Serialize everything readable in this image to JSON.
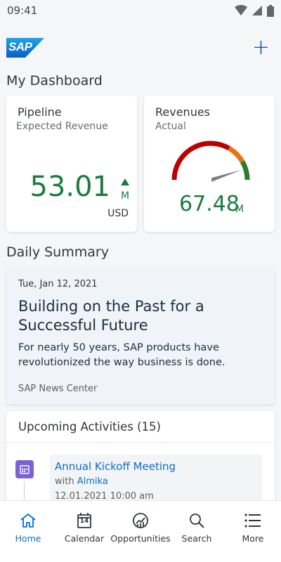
{
  "status_bar": {
    "time": "09:41"
  },
  "header": {
    "logo_text": "SAP",
    "add_label": "+"
  },
  "dashboard": {
    "title": "My Dashboard",
    "pipeline": {
      "title": "Pipeline",
      "subtitle": "Expected Revenue",
      "value": "53.01",
      "unit": "M",
      "currency": "USD",
      "trend": "up"
    },
    "revenues": {
      "title": "Revenues",
      "subtitle": "Actual",
      "value": "67.48",
      "unit": "M",
      "gauge_fraction": 0.9
    }
  },
  "daily_summary": {
    "title": "Daily Summary",
    "date": "Tue, Jan 12,  2021",
    "headline": "Building on the Past for a Successful Future",
    "body": "For nearly 50 years, SAP products have revolutionized the way business is done.",
    "source": "SAP News Center"
  },
  "activities": {
    "title": "Upcoming Activities (15)",
    "items": [
      {
        "title": "Annual Kickoff Meeting",
        "with_label": "with",
        "with_name": "Almika",
        "datetime": "12.01.2021 10:00 am"
      }
    ]
  },
  "nav": {
    "items": [
      {
        "label": "Home",
        "active": true
      },
      {
        "label": "Calendar",
        "active": false
      },
      {
        "label": "Opportunities",
        "active": false
      },
      {
        "label": "Search",
        "active": false
      },
      {
        "label": "More",
        "active": false
      }
    ],
    "calendar_day": "14"
  },
  "colors": {
    "accent": "#0a6ed1",
    "positive": "#1a7d3c",
    "gauge_red": "#bb0000",
    "gauge_orange": "#e9730c",
    "gauge_green": "#2b7c2b"
  }
}
